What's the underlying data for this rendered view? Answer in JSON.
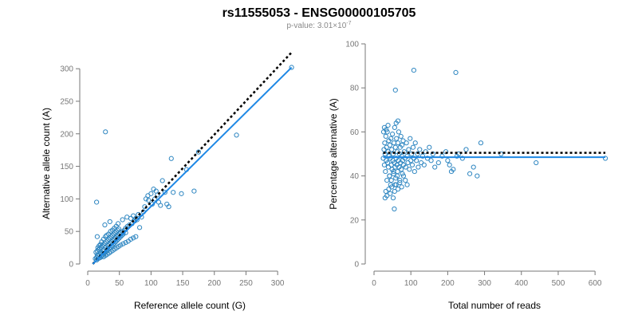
{
  "figure": {
    "title": "rs11555053 - ENSG00000105705",
    "pvalue_prefix": "p-value: 3.01×10",
    "pvalue_exp": "-7"
  },
  "colors": {
    "points": "#2e86c1",
    "fit": "#1e88e5",
    "reference": "#000000",
    "axis": "#777777"
  },
  "chart_data": [
    {
      "type": "scatter",
      "xlabel": "Reference allele count (G)",
      "ylabel": "Alternative allele count (A)",
      "xlim": [
        0,
        325
      ],
      "ylim": [
        0,
        310
      ],
      "xticks": [
        0,
        50,
        100,
        150,
        200,
        250,
        300
      ],
      "yticks": [
        0,
        50,
        100,
        150,
        200,
        250,
        300
      ],
      "fit_line": [
        [
          8,
          0
        ],
        [
          322,
          302
        ]
      ],
      "reference_line": [
        [
          8,
          0
        ],
        [
          322,
          325
        ]
      ],
      "points": [
        [
          12,
          8
        ],
        [
          14,
          10
        ],
        [
          16,
          12
        ],
        [
          15,
          14
        ],
        [
          18,
          15
        ],
        [
          20,
          18
        ],
        [
          22,
          16
        ],
        [
          24,
          20
        ],
        [
          26,
          22
        ],
        [
          28,
          25
        ],
        [
          30,
          22
        ],
        [
          32,
          28
        ],
        [
          34,
          30
        ],
        [
          36,
          32
        ],
        [
          38,
          34
        ],
        [
          40,
          36
        ],
        [
          42,
          38
        ],
        [
          44,
          40
        ],
        [
          46,
          42
        ],
        [
          48,
          44
        ],
        [
          50,
          46
        ],
        [
          52,
          48
        ],
        [
          55,
          50
        ],
        [
          58,
          52
        ],
        [
          60,
          55
        ],
        [
          63,
          58
        ],
        [
          66,
          60
        ],
        [
          70,
          62
        ],
        [
          74,
          66
        ],
        [
          78,
          68
        ],
        [
          82,
          56
        ],
        [
          13,
          18
        ],
        [
          15,
          20
        ],
        [
          17,
          22
        ],
        [
          19,
          24
        ],
        [
          21,
          26
        ],
        [
          23,
          28
        ],
        [
          25,
          30
        ],
        [
          27,
          32
        ],
        [
          29,
          34
        ],
        [
          31,
          36
        ],
        [
          33,
          38
        ],
        [
          35,
          40
        ],
        [
          37,
          42
        ],
        [
          39,
          44
        ],
        [
          41,
          46
        ],
        [
          43,
          48
        ],
        [
          45,
          50
        ],
        [
          47,
          52
        ],
        [
          49,
          54
        ],
        [
          20,
          10
        ],
        [
          22,
          12
        ],
        [
          24,
          14
        ],
        [
          26,
          16
        ],
        [
          28,
          18
        ],
        [
          30,
          20
        ],
        [
          32,
          22
        ],
        [
          34,
          24
        ],
        [
          36,
          26
        ],
        [
          38,
          28
        ],
        [
          40,
          30
        ],
        [
          42,
          32
        ],
        [
          44,
          34
        ],
        [
          46,
          36
        ],
        [
          48,
          38
        ],
        [
          50,
          40
        ],
        [
          52,
          42
        ],
        [
          54,
          44
        ],
        [
          56,
          46
        ],
        [
          60,
          48
        ],
        [
          16,
          25
        ],
        [
          18,
          28
        ],
        [
          20,
          30
        ],
        [
          22,
          34
        ],
        [
          25,
          38
        ],
        [
          28,
          42
        ],
        [
          30,
          44
        ],
        [
          33,
          46
        ],
        [
          36,
          50
        ],
        [
          39,
          52
        ],
        [
          42,
          55
        ],
        [
          45,
          58
        ],
        [
          27,
          60
        ],
        [
          35,
          65
        ],
        [
          48,
          62
        ],
        [
          55,
          68
        ],
        [
          62,
          72
        ],
        [
          68,
          70
        ],
        [
          72,
          74
        ],
        [
          14,
          6
        ],
        [
          16,
          8
        ],
        [
          18,
          9
        ],
        [
          25,
          11
        ],
        [
          28,
          13
        ],
        [
          31,
          15
        ],
        [
          34,
          17
        ],
        [
          37,
          19
        ],
        [
          40,
          21
        ],
        [
          43,
          23
        ],
        [
          46,
          25
        ],
        [
          49,
          27
        ],
        [
          52,
          29
        ],
        [
          56,
          31
        ],
        [
          60,
          33
        ],
        [
          64,
          35
        ],
        [
          68,
          38
        ],
        [
          72,
          40
        ],
        [
          76,
          42
        ],
        [
          15,
          42
        ],
        [
          14,
          95
        ],
        [
          28,
          203
        ],
        [
          92,
          100
        ],
        [
          95,
          105
        ],
        [
          100,
          108
        ],
        [
          104,
          115
        ],
        [
          108,
          112
        ],
        [
          112,
          95
        ],
        [
          115,
          90
        ],
        [
          118,
          128
        ],
        [
          122,
          110
        ],
        [
          125,
          92
        ],
        [
          128,
          88
        ],
        [
          132,
          162
        ],
        [
          135,
          110
        ],
        [
          148,
          108
        ],
        [
          156,
          145
        ],
        [
          168,
          112
        ],
        [
          175,
          172
        ],
        [
          235,
          198
        ],
        [
          322,
          302
        ],
        [
          85,
          72
        ],
        [
          88,
          80
        ],
        [
          80,
          76
        ],
        [
          76,
          70
        ],
        [
          90,
          88
        ],
        [
          96,
          98
        ],
        [
          102,
          92
        ],
        [
          106,
          100
        ],
        [
          110,
          106
        ]
      ]
    },
    {
      "type": "scatter",
      "xlabel": "Total number of reads",
      "ylabel": "Percentage alternative (A)",
      "xlim": [
        0,
        630
      ],
      "ylim": [
        0,
        100
      ],
      "xticks": [
        0,
        100,
        200,
        300,
        400,
        500,
        600
      ],
      "yticks": [
        0,
        20,
        40,
        60,
        80,
        100
      ],
      "fit_level": 48.5,
      "reference_level": 50.5,
      "fit_x": [
        25,
        628
      ],
      "reference_x": [
        25,
        628
      ],
      "points": [
        [
          25,
          48
        ],
        [
          27,
          52
        ],
        [
          28,
          45
        ],
        [
          29,
          55
        ],
        [
          30,
          50
        ],
        [
          31,
          42
        ],
        [
          32,
          58
        ],
        [
          33,
          47
        ],
        [
          34,
          53
        ],
        [
          35,
          38
        ],
        [
          36,
          60
        ],
        [
          37,
          46
        ],
        [
          38,
          51
        ],
        [
          39,
          44
        ],
        [
          40,
          56
        ],
        [
          41,
          49
        ],
        [
          42,
          40
        ],
        [
          43,
          54
        ],
        [
          44,
          48
        ],
        [
          45,
          36
        ],
        [
          46,
          57
        ],
        [
          47,
          45
        ],
        [
          48,
          52
        ],
        [
          49,
          43
        ],
        [
          50,
          59
        ],
        [
          51,
          47
        ],
        [
          52,
          50
        ],
        [
          53,
          41
        ],
        [
          54,
          55
        ],
        [
          55,
          46
        ],
        [
          56,
          62
        ],
        [
          57,
          44
        ],
        [
          58,
          53
        ],
        [
          59,
          39
        ],
        [
          60,
          48
        ],
        [
          61,
          57
        ],
        [
          62,
          45
        ],
        [
          63,
          51
        ],
        [
          64,
          42
        ],
        [
          65,
          55
        ],
        [
          66,
          47
        ],
        [
          67,
          60
        ],
        [
          68,
          44
        ],
        [
          69,
          50
        ],
        [
          70,
          37
        ],
        [
          71,
          53
        ],
        [
          72,
          46
        ],
        [
          73,
          58
        ],
        [
          74,
          43
        ],
        [
          75,
          49
        ],
        [
          76,
          54
        ],
        [
          77,
          41
        ],
        [
          78,
          47
        ],
        [
          79,
          56
        ],
        [
          80,
          45
        ],
        [
          82,
          51
        ],
        [
          84,
          48
        ],
        [
          86,
          44
        ],
        [
          88,
          55
        ],
        [
          90,
          49
        ],
        [
          92,
          46
        ],
        [
          94,
          52
        ],
        [
          96,
          43
        ],
        [
          98,
          57
        ],
        [
          100,
          47
        ],
        [
          102,
          50
        ],
        [
          104,
          45
        ],
        [
          106,
          53
        ],
        [
          108,
          48
        ],
        [
          110,
          42
        ],
        [
          112,
          55
        ],
        [
          115,
          47
        ],
        [
          118,
          50
        ],
        [
          120,
          44
        ],
        [
          124,
          52
        ],
        [
          128,
          46
        ],
        [
          132,
          49
        ],
        [
          136,
          45
        ],
        [
          140,
          51
        ],
        [
          145,
          48
        ],
        [
          150,
          53
        ],
        [
          155,
          47
        ],
        [
          160,
          50
        ],
        [
          30,
          30
        ],
        [
          32,
          33
        ],
        [
          35,
          31
        ],
        [
          40,
          34
        ],
        [
          44,
          32
        ],
        [
          48,
          35
        ],
        [
          52,
          30
        ],
        [
          56,
          33
        ],
        [
          60,
          36
        ],
        [
          65,
          34
        ],
        [
          70,
          38
        ],
        [
          75,
          35
        ],
        [
          80,
          40
        ],
        [
          85,
          38
        ],
        [
          90,
          36
        ],
        [
          55,
          25
        ],
        [
          60,
          64
        ],
        [
          65,
          65
        ],
        [
          58,
          79
        ],
        [
          108,
          88
        ],
        [
          222,
          87
        ],
        [
          290,
          55
        ],
        [
          250,
          52
        ],
        [
          200,
          47
        ],
        [
          205,
          45
        ],
        [
          210,
          42
        ],
        [
          215,
          43
        ],
        [
          225,
          49
        ],
        [
          230,
          50
        ],
        [
          240,
          48
        ],
        [
          260,
          41
        ],
        [
          270,
          44
        ],
        [
          280,
          40
        ],
        [
          345,
          50
        ],
        [
          440,
          46
        ],
        [
          628,
          48
        ],
        [
          195,
          51
        ],
        [
          185,
          49
        ],
        [
          175,
          46
        ],
        [
          165,
          44
        ],
        [
          26,
          60
        ],
        [
          28,
          62
        ],
        [
          33,
          61
        ],
        [
          38,
          63
        ],
        [
          42,
          40
        ],
        [
          47,
          38
        ],
        [
          53,
          42
        ],
        [
          57,
          36
        ],
        [
          63,
          40
        ]
      ]
    }
  ]
}
